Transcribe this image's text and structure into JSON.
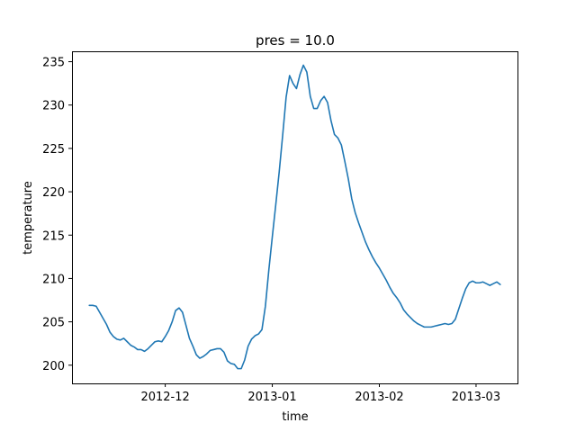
{
  "chart_data": {
    "type": "line",
    "title": "pres = 10.0",
    "xlabel": "time",
    "ylabel": "temperature",
    "x_type": "date",
    "xlim": [
      "2012-11-04",
      "2013-03-13"
    ],
    "ylim": [
      197.9,
      236.2
    ],
    "xticks": [
      {
        "value": "2012-12-01",
        "label": "2012-12"
      },
      {
        "value": "2013-01-01",
        "label": "2013-01"
      },
      {
        "value": "2013-02-01",
        "label": "2013-02"
      },
      {
        "value": "2013-03-01",
        "label": "2013-03"
      }
    ],
    "yticks": [
      200,
      205,
      210,
      215,
      220,
      225,
      230,
      235
    ],
    "grid": false,
    "series": [
      {
        "color": "#1f77b4",
        "x": [
          "2012-11-09",
          "2012-11-10",
          "2012-11-11",
          "2012-11-12",
          "2012-11-13",
          "2012-11-14",
          "2012-11-15",
          "2012-11-16",
          "2012-11-17",
          "2012-11-18",
          "2012-11-19",
          "2012-11-20",
          "2012-11-21",
          "2012-11-22",
          "2012-11-23",
          "2012-11-24",
          "2012-11-25",
          "2012-11-26",
          "2012-11-27",
          "2012-11-28",
          "2012-11-29",
          "2012-11-30",
          "2012-12-01",
          "2012-12-02",
          "2012-12-03",
          "2012-12-04",
          "2012-12-05",
          "2012-12-06",
          "2012-12-07",
          "2012-12-08",
          "2012-12-09",
          "2012-12-10",
          "2012-12-11",
          "2012-12-12",
          "2012-12-13",
          "2012-12-14",
          "2012-12-15",
          "2012-12-16",
          "2012-12-17",
          "2012-12-18",
          "2012-12-19",
          "2012-12-20",
          "2012-12-21",
          "2012-12-22",
          "2012-12-23",
          "2012-12-24",
          "2012-12-25",
          "2012-12-26",
          "2012-12-27",
          "2012-12-28",
          "2012-12-29",
          "2012-12-30",
          "2012-12-31",
          "2013-01-01",
          "2013-01-02",
          "2013-01-03",
          "2013-01-04",
          "2013-01-05",
          "2013-01-06",
          "2013-01-07",
          "2013-01-08",
          "2013-01-09",
          "2013-01-10",
          "2013-01-11",
          "2013-01-12",
          "2013-01-13",
          "2013-01-14",
          "2013-01-15",
          "2013-01-16",
          "2013-01-17",
          "2013-01-18",
          "2013-01-19",
          "2013-01-20",
          "2013-01-21",
          "2013-01-22",
          "2013-01-23",
          "2013-01-24",
          "2013-01-25",
          "2013-01-26",
          "2013-01-27",
          "2013-01-28",
          "2013-01-29",
          "2013-01-30",
          "2013-01-31",
          "2013-02-01",
          "2013-02-02",
          "2013-02-03",
          "2013-02-04",
          "2013-02-05",
          "2013-02-06",
          "2013-02-07",
          "2013-02-08",
          "2013-02-09",
          "2013-02-10",
          "2013-02-11",
          "2013-02-12",
          "2013-02-13",
          "2013-02-14",
          "2013-02-15",
          "2013-02-16",
          "2013-02-17",
          "2013-02-18",
          "2013-02-19",
          "2013-02-20",
          "2013-02-21",
          "2013-02-22",
          "2013-02-23",
          "2013-02-24",
          "2013-02-25",
          "2013-02-26",
          "2013-02-27",
          "2013-02-28",
          "2013-03-01",
          "2013-03-02",
          "2013-03-03",
          "2013-03-04",
          "2013-03-05",
          "2013-03-06",
          "2013-03-07",
          "2013-03-08"
        ],
        "y": [
          206.9,
          206.9,
          206.8,
          206.1,
          205.4,
          204.7,
          203.8,
          203.3,
          203.0,
          202.9,
          203.1,
          202.7,
          202.3,
          202.1,
          201.8,
          201.8,
          201.6,
          201.9,
          202.3,
          202.7,
          202.8,
          202.7,
          203.3,
          204.0,
          205.0,
          206.3,
          206.6,
          206.1,
          204.6,
          203.1,
          202.2,
          201.2,
          200.8,
          201.0,
          201.3,
          201.7,
          201.8,
          201.9,
          201.9,
          201.5,
          200.5,
          200.2,
          200.1,
          199.6,
          199.6,
          200.6,
          202.2,
          203.0,
          203.4,
          203.6,
          204.1,
          206.8,
          211.0,
          214.8,
          218.5,
          222.3,
          226.5,
          230.9,
          233.4,
          232.5,
          231.9,
          233.5,
          234.6,
          233.8,
          231.0,
          229.6,
          229.6,
          230.5,
          231.0,
          230.3,
          228.2,
          226.6,
          226.2,
          225.4,
          223.5,
          221.5,
          219.2,
          217.6,
          216.4,
          215.3,
          214.2,
          213.3,
          212.5,
          211.8,
          211.2,
          210.5,
          209.8,
          209.0,
          208.3,
          207.8,
          207.2,
          206.4,
          205.9,
          205.5,
          205.1,
          204.8,
          204.6,
          204.4,
          204.4,
          204.4,
          204.5,
          204.6,
          204.7,
          204.8,
          204.7,
          204.8,
          205.3,
          206.5,
          207.7,
          208.8,
          209.5,
          209.7,
          209.5,
          209.5,
          209.6,
          209.4,
          209.2,
          209.4,
          209.6,
          209.3
        ]
      }
    ]
  }
}
